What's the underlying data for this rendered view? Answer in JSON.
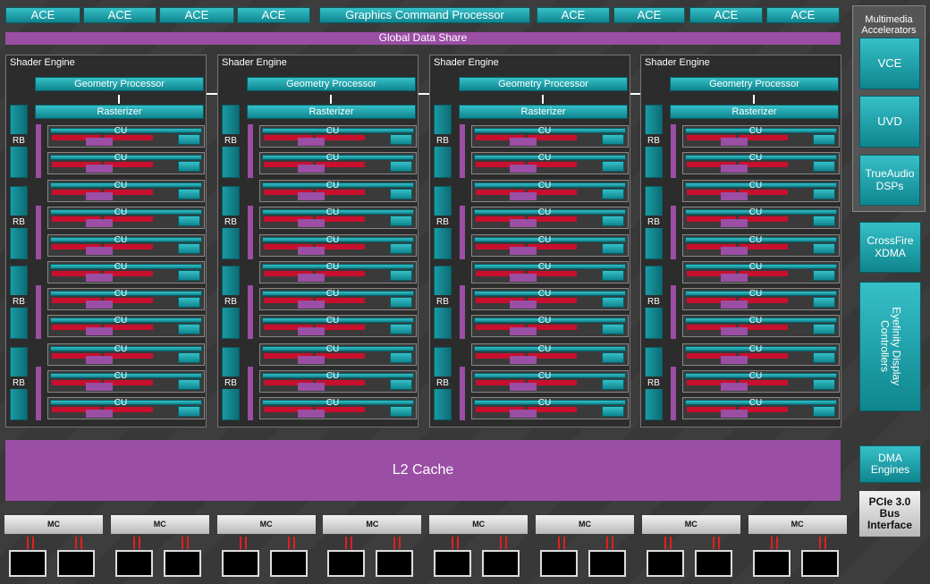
{
  "top_row": [
    "ACE",
    "ACE",
    "ACE",
    "ACE",
    "Graphics Command Processor",
    "ACE",
    "ACE",
    "ACE",
    "ACE"
  ],
  "global_data_share": "Global Data Share",
  "shader_engines": [
    {
      "title": "Shader Engine",
      "geometry_processor": "Geometry Processor",
      "rasterizer": "Rasterizer",
      "rbs": [
        "RB",
        "RB",
        "RB",
        "RB"
      ],
      "cus": [
        "CU",
        "CU",
        "CU",
        "CU",
        "CU",
        "CU",
        "CU",
        "CU",
        "CU",
        "CU",
        "CU"
      ]
    },
    {
      "title": "Shader Engine",
      "geometry_processor": "Geometry Processor",
      "rasterizer": "Rasterizer",
      "rbs": [
        "RB",
        "RB",
        "RB",
        "RB"
      ],
      "cus": [
        "CU",
        "CU",
        "CU",
        "CU",
        "CU",
        "CU",
        "CU",
        "CU",
        "CU",
        "CU",
        "CU"
      ]
    },
    {
      "title": "Shader Engine",
      "geometry_processor": "Geometry Processor",
      "rasterizer": "Rasterizer",
      "rbs": [
        "RB",
        "RB",
        "RB",
        "RB"
      ],
      "cus": [
        "CU",
        "CU",
        "CU",
        "CU",
        "CU",
        "CU",
        "CU",
        "CU",
        "CU",
        "CU",
        "CU"
      ]
    },
    {
      "title": "Shader Engine",
      "geometry_processor": "Geometry Processor",
      "rasterizer": "Rasterizer",
      "rbs": [
        "RB",
        "RB",
        "RB",
        "RB"
      ],
      "cus": [
        "CU",
        "CU",
        "CU",
        "CU",
        "CU",
        "CU",
        "CU",
        "CU",
        "CU",
        "CU",
        "CU"
      ]
    }
  ],
  "l2_cache": "L2 Cache",
  "memory_controllers": [
    "MC",
    "MC",
    "MC",
    "MC",
    "MC",
    "MC",
    "MC",
    "MC"
  ],
  "multimedia": {
    "title": "Multimedia Accelerators",
    "blocks": [
      "VCE",
      "UVD",
      "TrueAudio DSPs"
    ]
  },
  "side_blocks": [
    "CrossFire XDMA",
    "Eyefinity Display Controllers",
    "DMA Engines"
  ],
  "bus_interface": "PCIe 3.0 Bus Interface"
}
